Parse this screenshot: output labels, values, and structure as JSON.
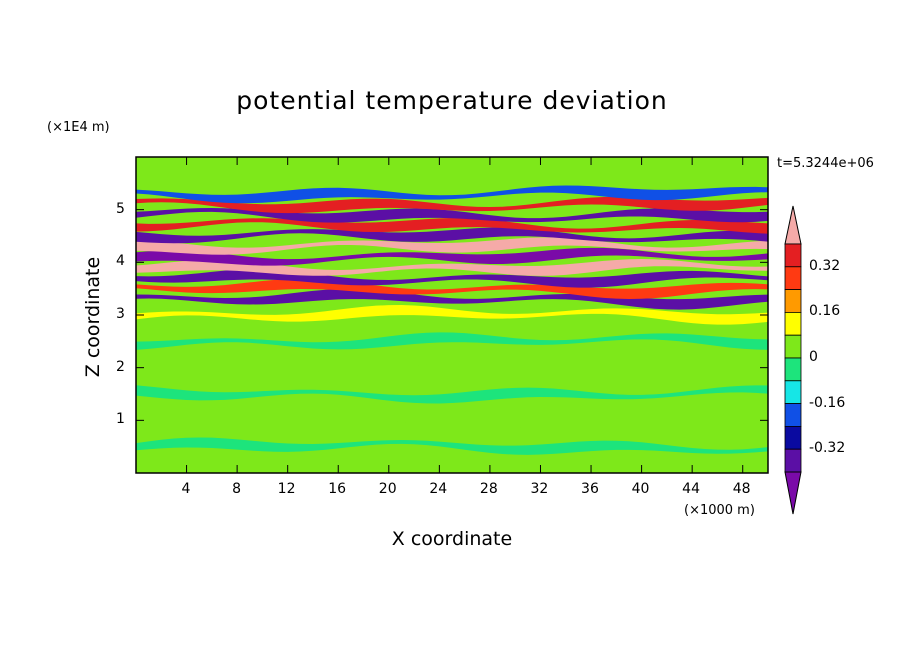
{
  "chart_data": {
    "type": "heatmap",
    "title": "potential temperature deviation",
    "xlabel": "X coordinate",
    "ylabel": "Z coordinate",
    "x_unit": "(×1000 m)",
    "y_unit": "(×1E4 m)",
    "time_label": "t=5.3244e+06",
    "xlim": [
      0,
      50
    ],
    "ylim": [
      0,
      6
    ],
    "x_ticks": [
      "4",
      "8",
      "12",
      "16",
      "20",
      "24",
      "28",
      "32",
      "36",
      "40",
      "44",
      "48"
    ],
    "y_ticks": [
      "1",
      "2",
      "3",
      "4",
      "5"
    ],
    "colorbar": {
      "levels": [
        -0.4,
        -0.32,
        -0.24,
        -0.16,
        -0.08,
        0,
        0.08,
        0.16,
        0.24,
        0.32,
        0.4
      ],
      "tick_labels": [
        "0.32",
        "0.16",
        "0",
        "-0.16",
        "-0.32"
      ],
      "colors": [
        "#7a0aa8",
        "#5b0fa5",
        "#0a0aa0",
        "#1050e6",
        "#16e6e6",
        "#1de47c",
        "#7ee81a",
        "#ffff00",
        "#ff9a00",
        "#ff3a12",
        "#e41f22",
        "#f5aaa8"
      ]
    },
    "bands": [
      {
        "z": 0.5,
        "value": -0.04
      },
      {
        "z": 1.0,
        "value": 0.04
      },
      {
        "z": 1.5,
        "value": -0.04
      },
      {
        "z": 2.0,
        "value": 0.04
      },
      {
        "z": 2.5,
        "value": -0.04
      },
      {
        "z": 3.0,
        "value": 0.12
      },
      {
        "z": 3.3,
        "value": -0.35
      },
      {
        "z": 3.5,
        "value": 0.28
      },
      {
        "z": 3.7,
        "value": -0.38
      },
      {
        "z": 3.9,
        "value": 0.42
      },
      {
        "z": 4.1,
        "value": -0.42
      },
      {
        "z": 4.3,
        "value": 0.42
      },
      {
        "z": 4.5,
        "value": -0.4
      },
      {
        "z": 4.7,
        "value": 0.38
      },
      {
        "z": 4.9,
        "value": -0.36
      },
      {
        "z": 5.1,
        "value": 0.33
      },
      {
        "z": 5.3,
        "value": -0.2
      },
      {
        "z": 5.6,
        "value": 0.05
      }
    ]
  }
}
